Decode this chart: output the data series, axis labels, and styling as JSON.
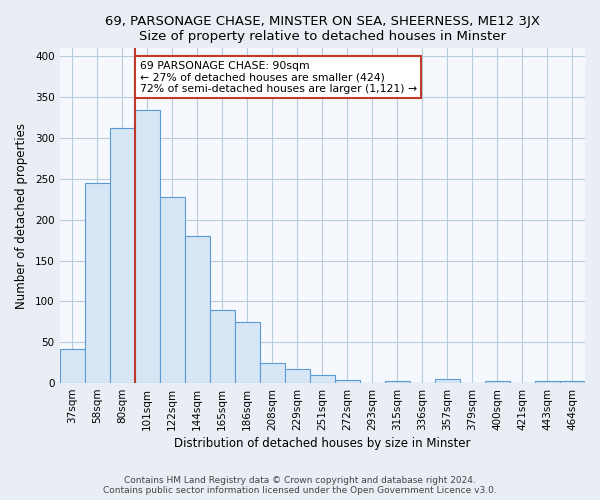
{
  "title_main": "69, PARSONAGE CHASE, MINSTER ON SEA, SHEERNESS, ME12 3JX",
  "title_sub": "Size of property relative to detached houses in Minster",
  "xlabel": "Distribution of detached houses by size in Minster",
  "ylabel": "Number of detached properties",
  "bar_labels": [
    "37sqm",
    "58sqm",
    "80sqm",
    "101sqm",
    "122sqm",
    "144sqm",
    "165sqm",
    "186sqm",
    "208sqm",
    "229sqm",
    "251sqm",
    "272sqm",
    "293sqm",
    "315sqm",
    "336sqm",
    "357sqm",
    "379sqm",
    "400sqm",
    "421sqm",
    "443sqm",
    "464sqm"
  ],
  "bar_values": [
    42,
    245,
    313,
    335,
    228,
    180,
    90,
    75,
    25,
    17,
    10,
    4,
    0,
    3,
    0,
    5,
    0,
    3,
    0,
    2,
    3
  ],
  "bar_color": "#d6e6f5",
  "bar_edge_color": "#5b9bd5",
  "vline_x": 3.0,
  "vline_color": "#c0392b",
  "annotation_line1": "69 PARSONAGE CHASE: 90sqm",
  "annotation_line2": "← 27% of detached houses are smaller (424)",
  "annotation_line3": "72% of semi-detached houses are larger (1,121) →",
  "annotation_box_color": "white",
  "annotation_box_edge": "#c0392b",
  "ylim": [
    0,
    410
  ],
  "yticks": [
    0,
    50,
    100,
    150,
    200,
    250,
    300,
    350,
    400
  ],
  "footer": "Contains HM Land Registry data © Crown copyright and database right 2024.\nContains public sector information licensed under the Open Government Licence v3.0.",
  "bg_color": "#e8eef4",
  "plot_bg": "#f5f8fc",
  "grid_color": "#b8cede",
  "title_fontsize": 9.5,
  "axis_label_fontsize": 8.5,
  "tick_fontsize": 7.5,
  "footer_fontsize": 6.5
}
